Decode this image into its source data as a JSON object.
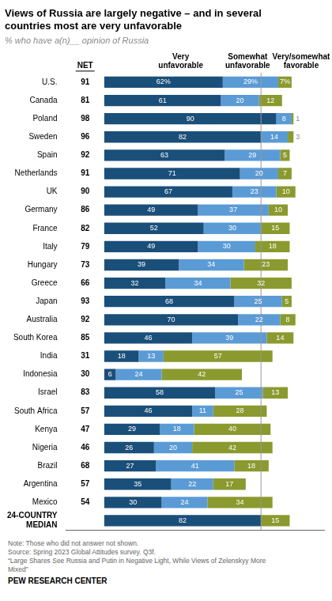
{
  "chart_data": {
    "type": "bar",
    "orientation": "horizontal",
    "stacked": true,
    "title": "Views of Russia are largely negative – and in several\ncountries most are very unfavorable",
    "subtitle": "% who have a(n)__ opinion of Russia",
    "categories": [
      "U.S.",
      "Canada",
      "Poland",
      "Sweden",
      "Spain",
      "Netherlands",
      "UK",
      "Germany",
      "France",
      "Italy",
      "Hungary",
      "Greece",
      "Japan",
      "Australia",
      "South Korea",
      "India",
      "Indonesia",
      "Israel",
      "South Africa",
      "Kenya",
      "Nigeria",
      "Brazil",
      "Argentina",
      "Mexico",
      "24-COUNTRY\nMEDIAN"
    ],
    "series": [
      {
        "name": "Very\nunfavorable",
        "color": "#1a4f7a",
        "values": [
          62,
          61,
          90,
          82,
          63,
          71,
          67,
          49,
          52,
          49,
          39,
          32,
          68,
          70,
          46,
          18,
          6,
          58,
          46,
          29,
          26,
          27,
          35,
          30,
          82
        ],
        "value_labels": [
          "62%",
          "61",
          "90",
          "82",
          "63",
          "71",
          "67",
          "49",
          "52",
          "49",
          "39",
          "32",
          "68",
          "70",
          "46",
          "18",
          "6",
          "58",
          "46",
          "29",
          "26",
          "27",
          "35",
          "30",
          "82"
        ]
      },
      {
        "name": "Somewhat\nunfavorable",
        "color": "#5b9bd5",
        "values": [
          29,
          20,
          8,
          14,
          29,
          20,
          23,
          37,
          30,
          30,
          34,
          34,
          25,
          22,
          39,
          13,
          24,
          25,
          11,
          18,
          20,
          41,
          22,
          24,
          0
        ],
        "value_labels": [
          "29%",
          "20",
          "8",
          "14",
          "29",
          "20",
          "23",
          "37",
          "30",
          "30",
          "34",
          "34",
          "25",
          "22",
          "39",
          "13",
          "24",
          "25",
          "11",
          "18",
          "20",
          "41",
          "22",
          "24",
          null
        ]
      },
      {
        "name": "Very/somewhat\nfavorable",
        "color": "#8a9a2e",
        "values": [
          7,
          12,
          1,
          3,
          5,
          7,
          10,
          10,
          15,
          18,
          23,
          32,
          5,
          8,
          14,
          57,
          42,
          13,
          28,
          40,
          42,
          18,
          17,
          34,
          15
        ],
        "value_labels": [
          "7%",
          "12",
          "1",
          "3",
          "5",
          "7",
          "10",
          "10",
          "15",
          "18",
          "23",
          "32",
          "5",
          "8",
          "14",
          "57",
          "42",
          "13",
          "28",
          "40",
          "42",
          "18",
          "17",
          "34",
          "15"
        ]
      }
    ],
    "net": {
      "label": "NET",
      "values": [
        91,
        81,
        98,
        96,
        92,
        91,
        90,
        86,
        82,
        79,
        73,
        66,
        93,
        92,
        85,
        31,
        30,
        83,
        57,
        47,
        46,
        68,
        57,
        54,
        null
      ]
    },
    "reference_line": {
      "x": 82,
      "color": "#999999"
    },
    "xlim": [
      -20,
      115
    ],
    "data_labels": true,
    "tick_labels": "y",
    "grid": false,
    "note": "Note: Those who did not answer not shown.\nSource: Spring 2023 Global Attitudes survey. Q3f.\n“Large Shares See Russia and Putin in Negative Light, While Views of Zelenskyy More\nMixed”",
    "footer": "PEW RESEARCH CENTER"
  }
}
